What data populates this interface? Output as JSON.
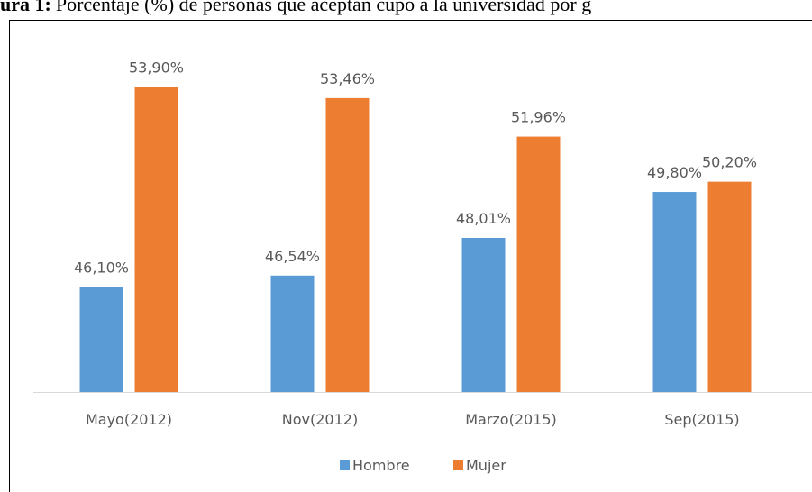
{
  "chart_data": {
    "type": "bar",
    "figure_label": "ura 1:",
    "title": "Porcentaje (%) de personas que aceptan cupo a la universidad por g",
    "categories": [
      "Mayo(2012)",
      "Nov(2012)",
      "Marzo(2015)",
      "Sep(2015)"
    ],
    "series": [
      {
        "name": "Hombre",
        "color": "#5b9bd5",
        "values": [
          46.1,
          46.54,
          48.01,
          49.8
        ],
        "value_labels": [
          "46,10%",
          "46,54%",
          "48,01%",
          "49,80%"
        ]
      },
      {
        "name": "Mujer",
        "color": "#ed7d31",
        "values": [
          53.9,
          53.46,
          51.96,
          50.2
        ],
        "value_labels": [
          "53,90%",
          "53,46%",
          "51,96%",
          "50,20%"
        ]
      }
    ],
    "ylim": [
      42,
      56
    ],
    "legend": "bottom"
  }
}
